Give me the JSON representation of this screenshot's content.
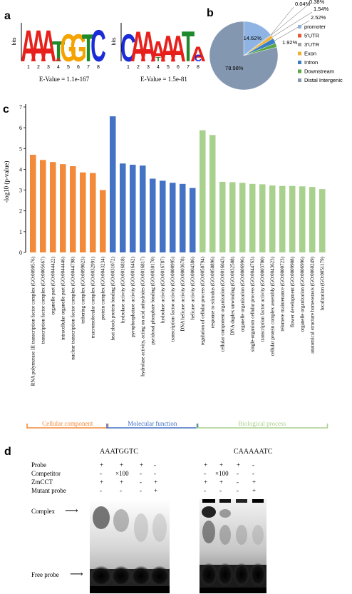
{
  "panels": {
    "a": "a",
    "b": "b",
    "c": "c",
    "d": "d"
  },
  "motifs": [
    {
      "ylabel": "bits",
      "letters": [
        "A",
        "A",
        "A",
        "T",
        "G",
        "G",
        "T",
        "C"
      ],
      "small_letter": "A",
      "positions": [
        "1",
        "2",
        "3",
        "4",
        "5",
        "6",
        "7",
        "8"
      ],
      "evalue": "E-Value = 1.1e-167"
    },
    {
      "ylabel": "bits",
      "letters": [
        "C",
        "A",
        "A",
        "A",
        "A",
        "A",
        "T",
        "A"
      ],
      "small_letters": [
        "T",
        "C"
      ],
      "positions": [
        "1",
        "2",
        "3",
        "4",
        "5",
        "6",
        "7",
        "8"
      ],
      "evalue": "E-Value = 1.5e-81"
    }
  ],
  "letter_colors": {
    "A": "#e8201c",
    "C": "#1a2bd8",
    "G": "#f4a300",
    "T": "#1f8a2c"
  },
  "chart_data": [
    {
      "type": "pie",
      "categories": [
        "promoter",
        "5'UTR",
        "3'UTR",
        "Exon",
        "Intron",
        "Downstream",
        "Distal Intergenic"
      ],
      "values": [
        14.62,
        0.04,
        0.38,
        1.54,
        2.52,
        1.92,
        78.98
      ],
      "value_labels": [
        "14.62%",
        "0.04%",
        "0.38%",
        "1.54%",
        "2.52%",
        "1.92%",
        "78.98%"
      ],
      "colors": [
        "#8fb4e3",
        "#e4572e",
        "#a3a3a3",
        "#f2b231",
        "#3a7ec8",
        "#5aa545",
        "#8497b0"
      ],
      "legend": "right"
    },
    {
      "type": "bar",
      "ylabel": "-log10 (p-value)",
      "ylim": [
        0,
        7
      ],
      "yticks": [
        "0",
        "1",
        "2",
        "3",
        "4",
        "5",
        "6",
        "7"
      ],
      "series_colors": {
        "Cellular component": "#f28a3a",
        "Molecular function": "#4472c4",
        "Biological process": "#a9d18e"
      },
      "categories": [
        "RNA polymerase III transcription factor complex (GO:0090576)",
        "transcription factor complex (GO:0005667)",
        "organelle part (GO:0044422)",
        "intracellular organelle part (GO:0044446)",
        "nuclear transcription factor complex (GO:0044798)",
        "tethering complex (GO:0099023)",
        "macromolecular complex (GO:0032991)",
        "protein complex (GO:0043234)",
        "heat shock protein binding (GO:0031072)",
        "hydrolase activity (GO:0016818)",
        "pyrophosphatase activity (GO:0016462)",
        "hydrolase activity, acting on acid anhydrides (GO:0016817)",
        "pyridoxal phosphate binding (GO:0030170)",
        "hydrolase activity (GO:0016787)",
        "transcription factor activity (GO:0000995)",
        "DNA helicase activity (GO:0003678)",
        "helicase activity (GO:0004386)",
        "regulation of cellular process (GO:0050794)",
        "response to stimulus (GO:0050896)",
        "cellular component organization (GO:0016043)",
        "DNA duplex unwinding (GO:0032508)",
        "organelle organization (GO:0006996)",
        "single-organism cellular process (GO:0044763)",
        "transcription factor activity (GO:0003700)",
        "cellular protein complex assembly (GO:0043623)",
        "telomere maintenance (GO:0000723)",
        "flower development (GO:0009908)",
        "organelle organization (GO:0006996)",
        "anatomical structure homeostasis (GO:0060249)",
        "localization (GO:0051179)"
      ],
      "groups": [
        "Cellular component",
        "Cellular component",
        "Cellular component",
        "Cellular component",
        "Cellular component",
        "Cellular component",
        "Cellular component",
        "Cellular component",
        "Molecular function",
        "Molecular function",
        "Molecular function",
        "Molecular function",
        "Molecular function",
        "Molecular function",
        "Molecular function",
        "Molecular function",
        "Molecular function",
        "Biological process",
        "Biological process",
        "Biological process",
        "Biological process",
        "Biological process",
        "Biological process",
        "Biological process",
        "Biological process",
        "Biological process",
        "Biological process",
        "Biological process",
        "Biological process",
        "Biological process"
      ],
      "values": [
        4.7,
        4.45,
        4.35,
        4.25,
        4.15,
        3.85,
        3.82,
        3.0,
        6.55,
        4.28,
        4.22,
        4.18,
        3.55,
        3.45,
        3.35,
        3.3,
        3.1,
        5.88,
        5.65,
        3.4,
        3.38,
        3.35,
        3.3,
        3.28,
        3.22,
        3.2,
        3.2,
        3.18,
        3.15,
        3.05
      ],
      "group_labels": [
        "Cellular component",
        "Molecular function",
        "Biological process"
      ]
    }
  ],
  "emsa": {
    "row_labels": [
      "Probe",
      "Competitor",
      "ZmCCT",
      "Mutant probe"
    ],
    "gels": [
      {
        "title": "AAATGGTC",
        "lanes": [
          [
            "+",
            "-",
            "+",
            "-"
          ],
          [
            "+",
            "×100",
            "+",
            "-"
          ],
          [
            "+",
            "-",
            "-",
            "-"
          ],
          [
            "-",
            "-",
            "+",
            "+"
          ]
        ]
      },
      {
        "title": "CAAAAATC",
        "lanes": [
          [
            "+",
            "-",
            "+",
            "-"
          ],
          [
            "+",
            "×100",
            "+",
            "-"
          ],
          [
            "+",
            "-",
            "-",
            "-"
          ],
          [
            "-",
            "-",
            "+",
            "+"
          ]
        ]
      }
    ],
    "complex_label": "Complex",
    "free_probe_label": "Free probe"
  }
}
